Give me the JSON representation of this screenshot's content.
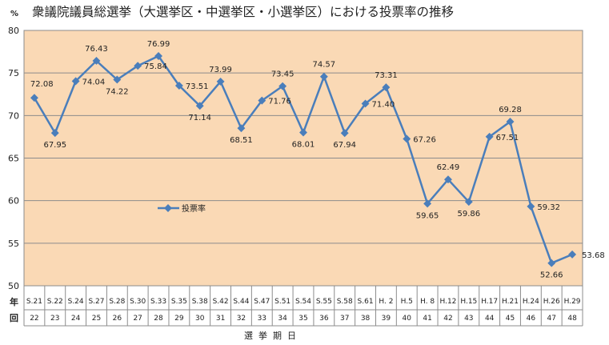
{
  "title": "衆議院議員総選挙（大選挙区・中選挙区・小選挙区）における投票率の推移",
  "unit_label": "%",
  "row_headers": {
    "year": "年",
    "round": "回"
  },
  "colors": {
    "plot_bg": "#FAD9B5",
    "line": "#4A7EBB",
    "grid": "#8C8C8C",
    "border": "#8C8C8C"
  },
  "chart_data": {
    "type": "line",
    "title": "衆議院議員総選挙（大選挙区・中選挙区・小選挙区）における投票率の推移",
    "xlabel": "選挙期日",
    "ylabel": "%",
    "ylim": [
      50,
      80
    ],
    "yticks": [
      50,
      55,
      60,
      65,
      70,
      75,
      80
    ],
    "grid": true,
    "legend_position": "center-left",
    "categories": [
      "S.21",
      "S.22",
      "S.24",
      "S.27",
      "S.28",
      "S.30",
      "S.33",
      "S.35",
      "S.38",
      "S.42",
      "S.44",
      "S.47",
      "S.51",
      "S.54",
      "S.55",
      "S.58",
      "S.61",
      "H. 2",
      "H.5",
      "H. 8",
      "H.12",
      "H.15",
      "H.17",
      "H.21",
      "H.24",
      "H.26",
      "H.29"
    ],
    "rounds": [
      "22",
      "23",
      "24",
      "25",
      "26",
      "27",
      "28",
      "29",
      "30",
      "31",
      "32",
      "33",
      "34",
      "35",
      "36",
      "37",
      "38",
      "39",
      "40",
      "41",
      "42",
      "43",
      "44",
      "45",
      "46",
      "47",
      "48"
    ],
    "series": [
      {
        "name": "投票率",
        "values": [
          72.08,
          67.95,
          74.04,
          76.43,
          74.22,
          75.84,
          76.99,
          73.51,
          71.14,
          73.99,
          68.51,
          71.76,
          73.45,
          68.01,
          74.57,
          67.94,
          71.4,
          73.31,
          67.26,
          59.65,
          62.49,
          59.86,
          67.51,
          69.28,
          59.32,
          52.66,
          53.68
        ],
        "labels": [
          "72.08",
          "67.95",
          "74.04",
          "76.43",
          "74.22",
          "75.84",
          "76.99",
          "73.51",
          "71.14",
          "73.99",
          "68.51",
          "71.76",
          "73.45",
          "68.01",
          "74.57",
          "67.94",
          "71.40",
          "73.31",
          "67.26",
          "59.65",
          "62.49",
          "59.86",
          "67.51",
          "69.28",
          "59.32",
          "52.66",
          "53.68"
        ]
      }
    ]
  }
}
